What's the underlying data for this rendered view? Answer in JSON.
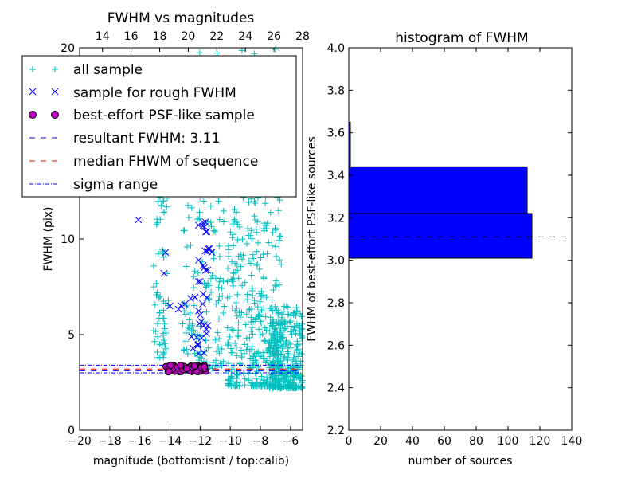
{
  "colors": {
    "all_sample": "#00bfbf",
    "rough_sample": "#0000ff",
    "psf_fill": "#bf00bf",
    "psf_edge": "#000000",
    "resultant_line": "#0000ff",
    "median_line": "#ff0000",
    "sigma_line": "#0000ff",
    "bar_fill": "#0000ff"
  },
  "chart_data": [
    {
      "type": "scatter",
      "title": "FWHM vs magnitudes",
      "xlabel": "magnitude (bottom:isnt / top:calib)",
      "ylabel": "FWHM (pix)",
      "xlim": [
        -20,
        -5.2
      ],
      "ylim": [
        0,
        20
      ],
      "top_xlim": [
        12.4,
        28
      ],
      "xticks": [
        "−20",
        "−18",
        "−16",
        "−14",
        "−12",
        "−10",
        "−8",
        "−6"
      ],
      "top_xticks": [
        "14",
        "16",
        "18",
        "20",
        "22",
        "24",
        "26",
        "28"
      ],
      "yticks": [
        "0",
        "5",
        "10",
        "15",
        "20"
      ],
      "legend_position": "upper-left",
      "grid": false,
      "legend": {
        "all_sample": "all sample",
        "rough_sample": "sample for rough FWHM",
        "psf_sample": "best-effort PSF-like sample",
        "resultant": "resultant FWHM: 3.11",
        "median": "median FHWM of sequence",
        "sigma": "sigma range"
      },
      "resultant_fwhm": 3.11,
      "median_fwhm": 3.2,
      "sigma_range": [
        3.0,
        3.4
      ],
      "all_sample_groups": [
        {
          "x": -14.6,
          "x_range": [
            -15.1,
            -14.1
          ],
          "y_range": [
            3.8,
            14.5
          ],
          "count": 70
        },
        {
          "x": -12.6,
          "x_range": [
            -13.2,
            -12.1
          ],
          "y_range": [
            4.0,
            12.0
          ],
          "count": 40
        },
        {
          "x": -11.2,
          "x_range": [
            -12.1,
            -10.4
          ],
          "y_range": [
            3.2,
            20.0
          ],
          "count": 120
        },
        {
          "x": -8.8,
          "x_range": [
            -10.2,
            -6.6
          ],
          "y_range": [
            2.3,
            20.0
          ],
          "count": 500
        },
        {
          "x": -6.4,
          "x_range": [
            -7.4,
            -5.2
          ],
          "y_range": [
            2.2,
            6.5
          ],
          "count": 320
        }
      ],
      "rough_sample_groups": [
        {
          "x": -16.1,
          "y": 11.0
        },
        {
          "x": -14.3,
          "y": 9.3
        },
        {
          "x": -14.4,
          "y": 8.2
        },
        {
          "x": -14.0,
          "y": 6.5
        },
        {
          "x": -13.2,
          "y_range": [
            6.0,
            6.6
          ],
          "count": 3
        },
        {
          "x": -12.5,
          "y_range": [
            6.2,
            7.2
          ],
          "count": 3
        },
        {
          "x": -11.8,
          "y_range": [
            4.0,
            11.0
          ],
          "count": 28
        },
        {
          "x": -12.3,
          "y_range": [
            4.2,
            5.0
          ],
          "count": 4
        },
        {
          "x": -11.5,
          "y_range": [
            6.5,
            9.5
          ],
          "count": 6
        }
      ],
      "psf_sample": {
        "x_range": [
          -14.3,
          -11.6
        ],
        "y_range": [
          3.05,
          3.4
        ],
        "count": 60
      }
    },
    {
      "type": "bar",
      "orientation": "horizontal",
      "title": "histogram of FWHM",
      "xlabel": "number of sources",
      "ylabel": "FWHM of best-effort PSF-like sources",
      "xlim": [
        0,
        140
      ],
      "ylim": [
        2.2,
        4.0
      ],
      "xticks": [
        "0",
        "20",
        "40",
        "60",
        "80",
        "100",
        "120",
        "140"
      ],
      "yticks": [
        "2.2",
        "2.4",
        "2.6",
        "2.8",
        "3.0",
        "3.2",
        "3.4",
        "3.6",
        "3.8",
        "4.0"
      ],
      "bins": [
        {
          "y0": 3.01,
          "y1": 3.22,
          "value": 115
        },
        {
          "y0": 3.22,
          "y1": 3.44,
          "value": 112
        },
        {
          "y0": 3.44,
          "y1": 3.65,
          "value": 1
        }
      ],
      "resultant_line": 3.11
    }
  ]
}
